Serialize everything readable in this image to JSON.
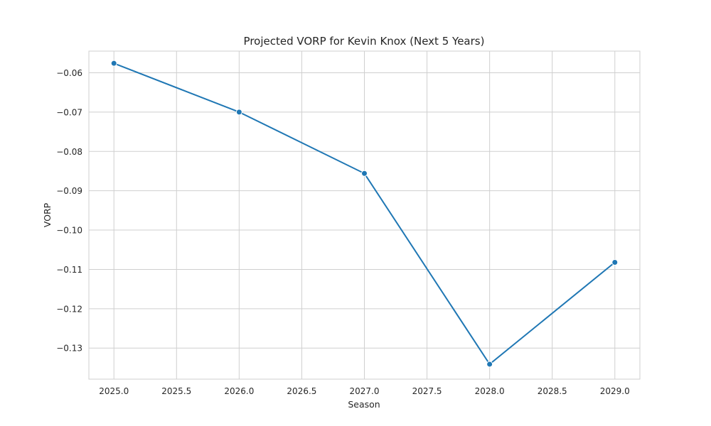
{
  "chart_data": {
    "type": "line",
    "title": "Projected VORP for Kevin Knox (Next 5 Years)",
    "xlabel": "Season",
    "ylabel": "VORP",
    "x": [
      2025,
      2026,
      2027,
      2028,
      2029
    ],
    "series": [
      {
        "values": [
          -0.0576,
          -0.07,
          -0.0856,
          -0.1341,
          -0.1082
        ]
      }
    ],
    "xlim": [
      2024.8,
      2029.2
    ],
    "ylim": [
      -0.1379,
      -0.0545
    ],
    "xticks": [
      2025.0,
      2025.5,
      2026.0,
      2026.5,
      2027.0,
      2027.5,
      2028.0,
      2028.5,
      2029.0
    ],
    "xtick_labels": [
      "2025.0",
      "2025.5",
      "2026.0",
      "2026.5",
      "2027.0",
      "2027.5",
      "2028.0",
      "2028.5",
      "2029.0"
    ],
    "yticks": [
      -0.06,
      -0.07,
      -0.08,
      -0.09,
      -0.1,
      -0.11,
      -0.12,
      -0.13
    ],
    "ytick_labels": [
      "−0.06",
      "−0.07",
      "−0.08",
      "−0.09",
      "−0.10",
      "−0.11",
      "−0.12",
      "−0.13"
    ],
    "grid": true,
    "legend": "none",
    "colors": {
      "line": "#1f77b4",
      "grid": "#cfcfcf",
      "text": "#262626"
    }
  }
}
